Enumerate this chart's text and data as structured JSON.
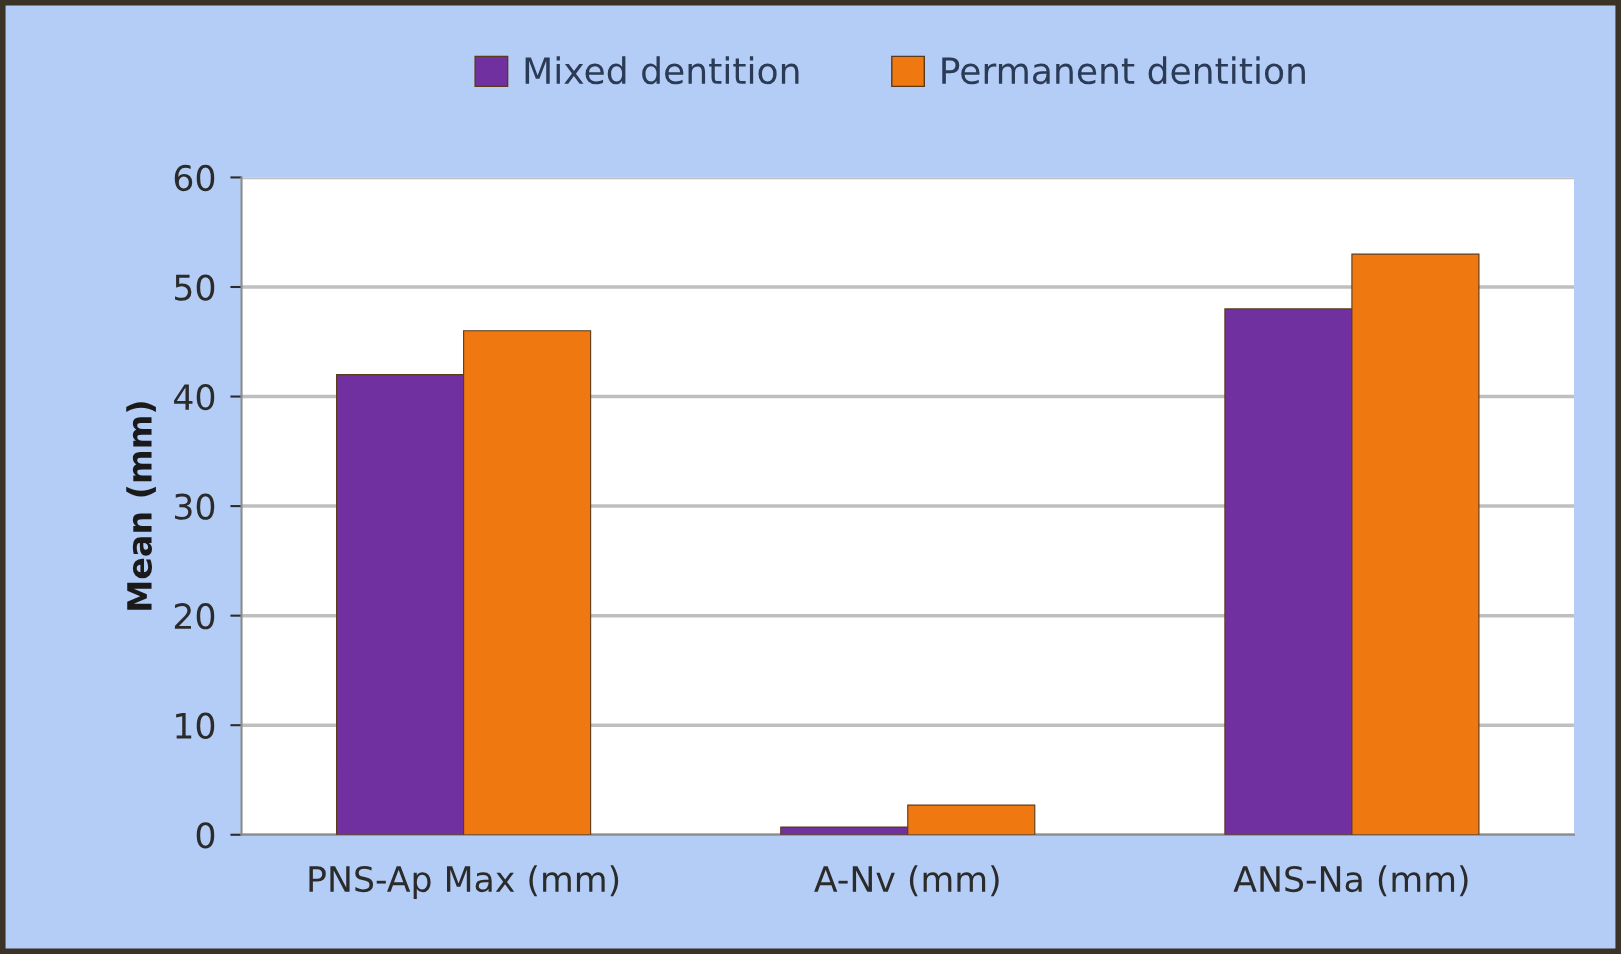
{
  "chart_data": {
    "type": "bar",
    "ylabel": "Mean (mm)",
    "categories": [
      "PNS-Ap Max (mm)",
      "A-Nv (mm)",
      "ANS-Na (mm)"
    ],
    "series": [
      {
        "name": "Mixed dentition",
        "color": "#7030a0",
        "values": [
          42,
          0.7,
          48
        ]
      },
      {
        "name": "Permanent dentition",
        "color": "#f07810",
        "values": [
          46,
          2.7,
          53
        ]
      }
    ],
    "ylim": [
      0,
      60
    ],
    "yticks": [
      0,
      10,
      20,
      30,
      40,
      50,
      60
    ],
    "grid": "y",
    "legend": "top"
  }
}
